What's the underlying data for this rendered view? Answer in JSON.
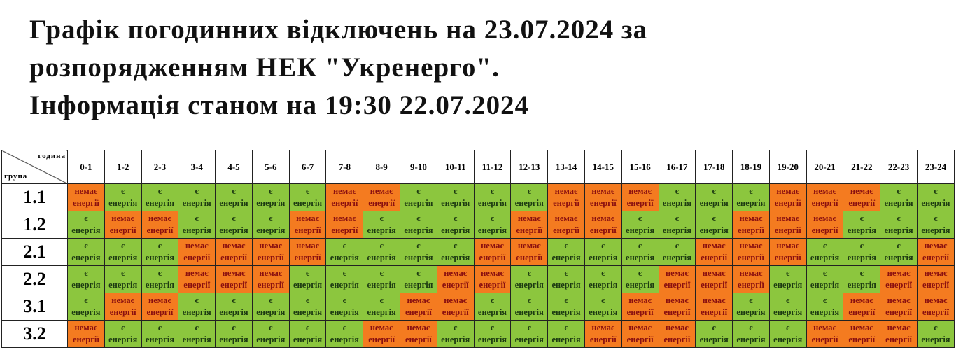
{
  "title": {
    "line1": "Графік погодинних відключень на 23.07.2024 за",
    "line2": "розпорядженням НЕК \"Укренерго\".",
    "line3": "Інформація станом на 19:30 22.07.2024"
  },
  "table": {
    "corner_hour": "година",
    "corner_group": "група",
    "hours": [
      "0-1",
      "1-2",
      "2-3",
      "3-4",
      "4-5",
      "5-6",
      "6-7",
      "7-8",
      "8-9",
      "9-10",
      "10-11",
      "11-12",
      "12-13",
      "13-14",
      "14-15",
      "15-16",
      "16-17",
      "17-18",
      "18-19",
      "19-20",
      "20-21",
      "21-22",
      "22-23",
      "23-24"
    ],
    "labels": {
      "on": [
        "є",
        "енергія"
      ],
      "off": [
        "немає",
        "енергії"
      ]
    },
    "colors": {
      "on": "#8cc63e",
      "off": "#f47b20"
    },
    "rows": [
      {
        "group": "1.1",
        "states": [
          "off",
          "on",
          "on",
          "on",
          "on",
          "on",
          "on",
          "off",
          "off",
          "on",
          "on",
          "on",
          "on",
          "off",
          "off",
          "off",
          "on",
          "on",
          "on",
          "off",
          "off",
          "off",
          "on",
          "on"
        ]
      },
      {
        "group": "1.2",
        "states": [
          "on",
          "off",
          "off",
          "on",
          "on",
          "on",
          "off",
          "off",
          "on",
          "on",
          "on",
          "on",
          "off",
          "off",
          "off",
          "on",
          "on",
          "on",
          "off",
          "off",
          "off",
          "on",
          "on",
          "on"
        ]
      },
      {
        "group": "2.1",
        "states": [
          "on",
          "on",
          "on",
          "off",
          "off",
          "off",
          "off",
          "on",
          "on",
          "on",
          "on",
          "off",
          "off",
          "on",
          "on",
          "on",
          "on",
          "off",
          "off",
          "off",
          "on",
          "on",
          "on",
          "off"
        ]
      },
      {
        "group": "2.2",
        "states": [
          "on",
          "on",
          "on",
          "off",
          "off",
          "off",
          "on",
          "on",
          "on",
          "on",
          "off",
          "off",
          "on",
          "on",
          "on",
          "on",
          "off",
          "off",
          "off",
          "on",
          "on",
          "on",
          "off",
          "off"
        ]
      },
      {
        "group": "3.1",
        "states": [
          "on",
          "off",
          "off",
          "on",
          "on",
          "on",
          "on",
          "on",
          "on",
          "off",
          "off",
          "on",
          "on",
          "on",
          "on",
          "off",
          "off",
          "off",
          "on",
          "on",
          "on",
          "off",
          "off",
          "off"
        ]
      },
      {
        "group": "3.2",
        "states": [
          "off",
          "on",
          "on",
          "on",
          "on",
          "on",
          "on",
          "on",
          "off",
          "off",
          "on",
          "on",
          "on",
          "on",
          "off",
          "off",
          "off",
          "on",
          "on",
          "on",
          "off",
          "off",
          "off",
          "on"
        ]
      }
    ]
  }
}
